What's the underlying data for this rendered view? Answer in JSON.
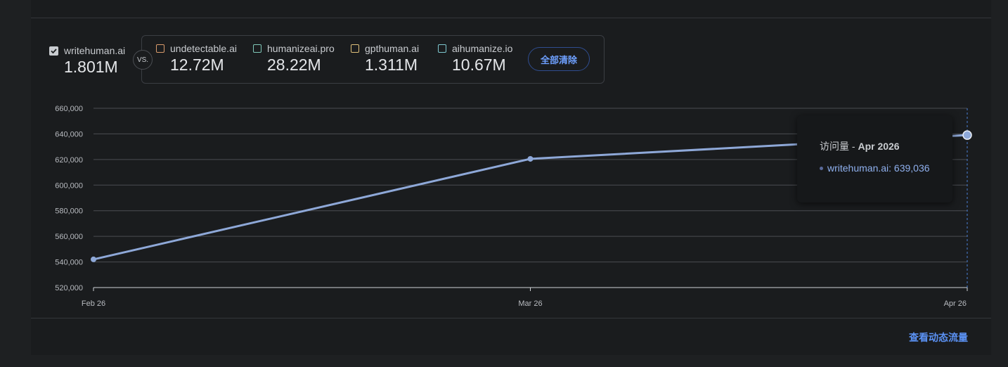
{
  "primary": {
    "name": "writehuman.ai",
    "value": "1.801M",
    "checked": true
  },
  "vs_label": "VS.",
  "competitors": [
    {
      "name": "undetectable.ai",
      "value": "12.72M",
      "color": "#d99b6b"
    },
    {
      "name": "humanizeai.pro",
      "value": "28.22M",
      "color": "#7fc8b8"
    },
    {
      "name": "gpthuman.ai",
      "value": "1.311M",
      "color": "#e0c07a"
    },
    {
      "name": "aihumanize.io",
      "value": "10.67M",
      "color": "#7ec8d0"
    }
  ],
  "clear_all_label": "全部清除",
  "tooltip": {
    "title_prefix": "访问量 - ",
    "title_date": "Apr 2026",
    "entry": "writehuman.ai: 639,036"
  },
  "view_traffic_link": "查看动态流量",
  "chart_data": {
    "type": "line",
    "x": [
      "Feb 26",
      "Mar 26",
      "Apr 26"
    ],
    "series": [
      {
        "name": "writehuman.ai",
        "values": [
          542000,
          620500,
          639036
        ],
        "color": "#8ea8d8"
      }
    ],
    "ylim": [
      520000,
      660000
    ],
    "yticks": [
      520000,
      540000,
      560000,
      580000,
      600000,
      620000,
      640000,
      660000
    ],
    "ytick_labels": [
      "520,000",
      "540,000",
      "560,000",
      "580,000",
      "600,000",
      "620,000",
      "640,000",
      "660,000"
    ],
    "grid": true
  }
}
